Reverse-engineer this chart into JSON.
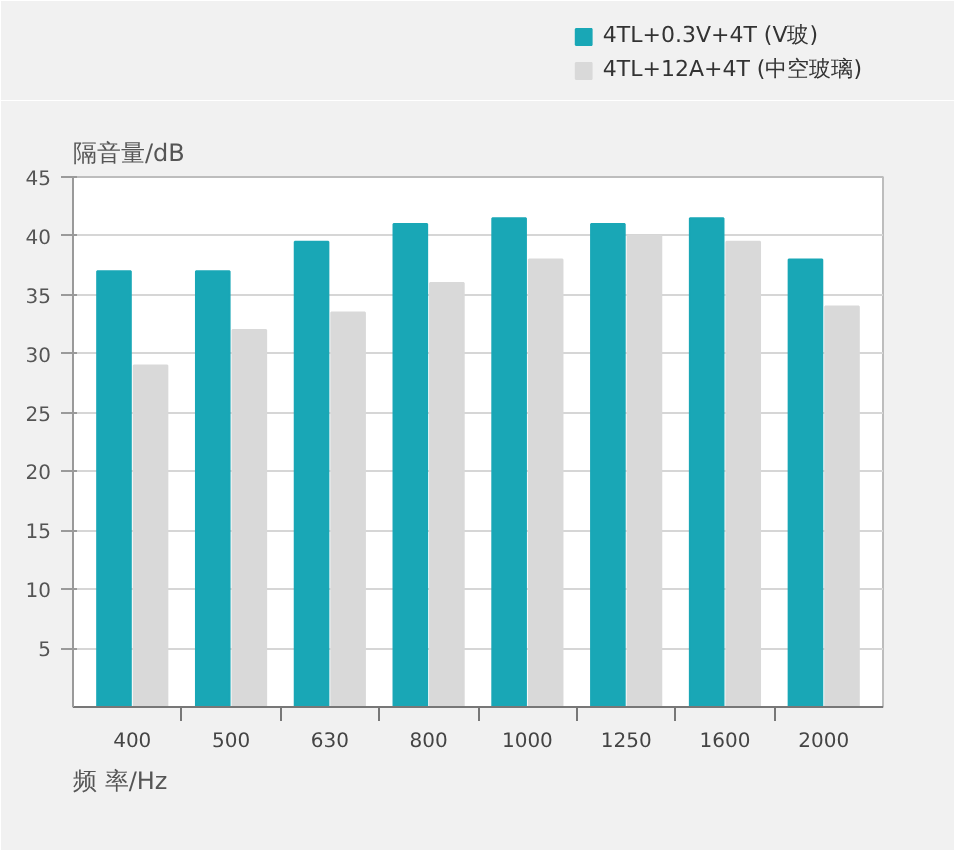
{
  "chart_data": {
    "type": "bar",
    "ylabel": "隔音量/dB",
    "xlabel": "频 率/Hz",
    "categories": [
      "400",
      "500",
      "630",
      "800",
      "1000",
      "1250",
      "1600",
      "2000"
    ],
    "series": [
      {
        "name": "4TL+0.3V+4T (V玻)",
        "color": "#19a7b6",
        "values": [
          37,
          37,
          39.5,
          41,
          41.5,
          41,
          41.5,
          38
        ]
      },
      {
        "name": "4TL+12A+4T (中空玻璃)",
        "color": "#d9d9d9",
        "values": [
          29,
          32,
          33.5,
          36,
          38,
          40,
          39.5,
          34
        ]
      }
    ],
    "ylim": [
      0,
      45
    ],
    "yticks": [
      5,
      10,
      15,
      20,
      25,
      30,
      35,
      40,
      45
    ],
    "grid": "y",
    "legend": "top right"
  }
}
